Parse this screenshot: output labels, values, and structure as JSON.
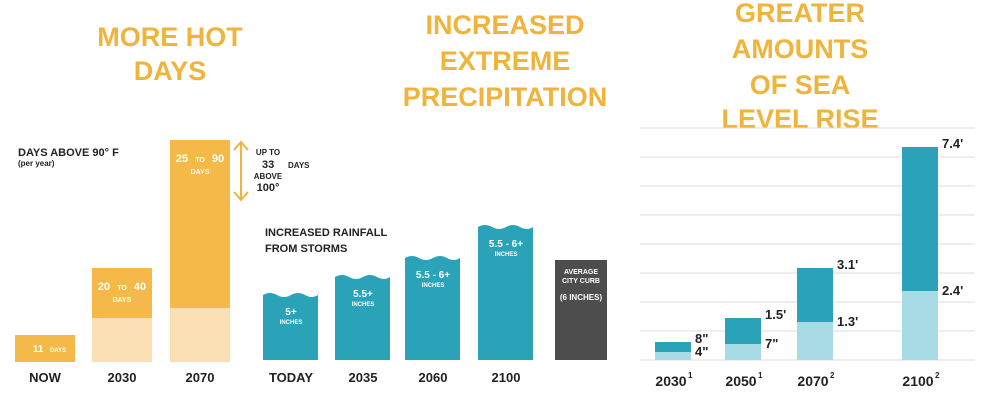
{
  "panels": [
    {
      "title": [
        "MORE HOT",
        "DAYS"
      ],
      "subtitle": "DAYS ABOVE 90° F",
      "note": "(per year)",
      "bars": [
        {
          "label": "NOW",
          "value_text": [
            "11",
            "DAYS"
          ]
        },
        {
          "label": "2030",
          "value_text": [
            "20",
            "TO",
            "40",
            "DAYS"
          ]
        },
        {
          "label": "2070",
          "value_text": [
            "25",
            "TO",
            "90",
            "DAYS"
          ]
        }
      ],
      "annotation": [
        "UP TO",
        "33",
        "DAYS",
        "ABOVE",
        "100°"
      ]
    },
    {
      "title": [
        "INCREASED",
        "EXTREME",
        "PRECIPITATION"
      ],
      "subtitle": [
        "INCREASED RAINFALL",
        "FROM STORMS"
      ],
      "bars": [
        {
          "label": "TODAY",
          "value_text": [
            "5+",
            "INCHES"
          ]
        },
        {
          "label": "2035",
          "value_text": [
            "5.5+",
            "INCHES"
          ]
        },
        {
          "label": "2060",
          "value_text": [
            "5.5 - 6+",
            "INCHES"
          ]
        },
        {
          "label": "2100",
          "value_text": [
            "5.5 - 6+",
            "INCHES"
          ]
        }
      ],
      "reference": [
        "AVERAGE",
        "CITY CURB",
        "(6 INCHES)"
      ]
    },
    {
      "title": [
        "GREATER",
        "AMOUNTS",
        "OF SEA",
        "LEVEL RISE"
      ],
      "bars": [
        {
          "label": "2030",
          "sup": "1",
          "high": "8\"",
          "low": "4\""
        },
        {
          "label": "2050",
          "sup": "1",
          "high": "1.5'",
          "low": "7\""
        },
        {
          "label": "2070",
          "sup": "2",
          "high": "3.1'",
          "low": "1.3'"
        },
        {
          "label": "2100",
          "sup": "2",
          "high": "7.4'",
          "low": "2.4'"
        }
      ]
    }
  ]
}
